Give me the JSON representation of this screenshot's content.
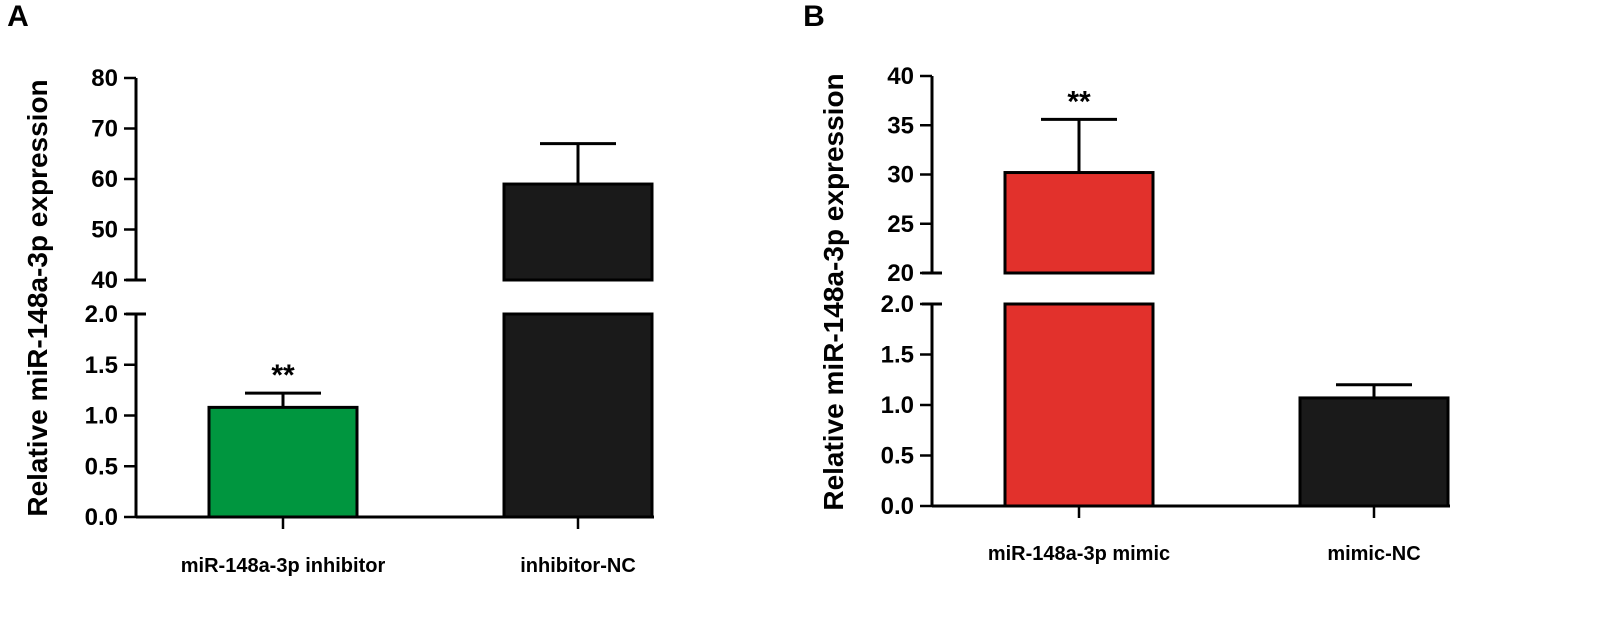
{
  "chart_data": [
    {
      "panel": "A",
      "type": "bar",
      "ylabel": "Relative miR-148a-3p expression",
      "categories": [
        "miR-148a-3p inhibitor",
        "inhibitor-NC"
      ],
      "values": [
        1.08,
        59.0
      ],
      "errors": [
        0.14,
        8.0
      ],
      "colors": [
        "#00963f",
        "#1a1a1a"
      ],
      "significance": [
        "**",
        ""
      ],
      "axis_break": {
        "lower": {
          "ylim": [
            0,
            2.0
          ],
          "ticks": [
            "0.0",
            "0.5",
            "1.0",
            "1.5",
            "2.0"
          ]
        },
        "upper": {
          "ylim": [
            40,
            80
          ],
          "ticks": [
            "40",
            "50",
            "60",
            "70",
            "80"
          ]
        }
      }
    },
    {
      "panel": "B",
      "type": "bar",
      "ylabel": "Relative miR-148a-3p expression",
      "categories": [
        "miR-148a-3p mimic",
        "mimic-NC"
      ],
      "values": [
        30.2,
        1.07
      ],
      "errors": [
        5.4,
        0.13
      ],
      "colors": [
        "#e2312c",
        "#1a1a1a"
      ],
      "significance": [
        "**",
        ""
      ],
      "axis_break": {
        "lower": {
          "ylim": [
            0,
            2.0
          ],
          "ticks": [
            "0.0",
            "0.5",
            "1.0",
            "1.5",
            "2.0"
          ]
        },
        "upper": {
          "ylim": [
            20,
            40
          ],
          "ticks": [
            "20",
            "25",
            "30",
            "35",
            "40"
          ]
        }
      }
    }
  ]
}
